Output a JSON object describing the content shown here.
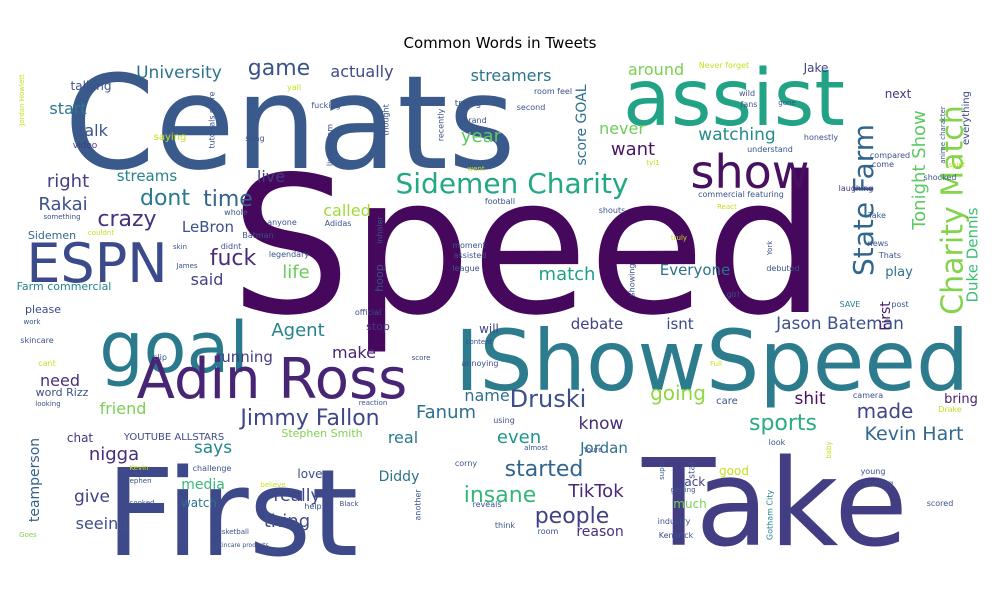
{
  "chart_data": {
    "type": "wordcloud",
    "title": "Common Words in Tweets",
    "colormap": "viridis",
    "words": [
      {
        "text": "Speed",
        "color": "#45085d",
        "weight": 100
      },
      {
        "text": "Cenats",
        "color": "#3b5a8c",
        "weight": 88
      },
      {
        "text": "First",
        "color": "#3e4989",
        "weight": 85
      },
      {
        "text": "Take",
        "color": "#433d84",
        "weight": 85
      },
      {
        "text": "IShowSpeed",
        "color": "#2c7c8e",
        "weight": 68
      },
      {
        "text": "assist",
        "color": "#22a385",
        "weight": 62
      },
      {
        "text": "goal",
        "color": "#2a7a8e",
        "weight": 55
      },
      {
        "text": "Adin Ross",
        "color": "#482475",
        "weight": 45
      },
      {
        "text": "ESPN",
        "color": "#3b4a8b",
        "weight": 42
      },
      {
        "text": "show",
        "color": "#471061",
        "weight": 38
      },
      {
        "text": "Charity Match",
        "color": "#84d44b",
        "weight": 32
      },
      {
        "text": "Sidemen Charity",
        "color": "#22a884",
        "weight": 28
      },
      {
        "text": "State Farm",
        "color": "#31668e",
        "weight": 26
      },
      {
        "text": "Jimmy Fallon",
        "color": "#3f4788",
        "weight": 22
      },
      {
        "text": "Druski",
        "color": "#3c4f8a",
        "weight": 22
      },
      {
        "text": "insane",
        "color": "#35b779",
        "weight": 20
      },
      {
        "text": "started",
        "color": "#32658e",
        "weight": 20
      },
      {
        "text": "people",
        "color": "#424086",
        "weight": 20
      },
      {
        "text": "fuck",
        "color": "#472d7b",
        "weight": 18
      },
      {
        "text": "dont",
        "color": "#2a788e",
        "weight": 18
      },
      {
        "text": "game",
        "color": "#3a538b",
        "weight": 18
      },
      {
        "text": "crazy",
        "color": "#46327e",
        "weight": 18
      },
      {
        "text": "time",
        "color": "#34618d",
        "weight": 18
      },
      {
        "text": "TikTok",
        "color": "#482878",
        "weight": 16
      },
      {
        "text": "sports",
        "color": "#26ad81",
        "weight": 18
      },
      {
        "text": "Kevin Hart",
        "color": "#31688e",
        "weight": 16
      },
      {
        "text": "Tonight Show",
        "color": "#5ec962",
        "weight": 14
      },
      {
        "text": "Duke Dennis",
        "color": "#3dbc74",
        "weight": 12
      },
      {
        "text": "going",
        "color": "#90d743",
        "weight": 17
      },
      {
        "text": "made",
        "color": "#404688",
        "weight": 16
      },
      {
        "text": "want",
        "color": "#481668",
        "weight": 15
      },
      {
        "text": "Fanum",
        "color": "#2e6f8e",
        "weight": 15
      },
      {
        "text": "nigga",
        "color": "#472c7a",
        "weight": 14
      },
      {
        "text": "Jason Bateman",
        "color": "#3b528b",
        "weight": 13
      },
      {
        "text": "Agent",
        "color": "#26828e",
        "weight": 14
      },
      {
        "text": "University",
        "color": "#2c738e",
        "weight": 14
      },
      {
        "text": "actually",
        "color": "#3e4a89",
        "weight": 13
      },
      {
        "text": "streamers",
        "color": "#2b748e",
        "weight": 13
      },
      {
        "text": "year",
        "color": "#5ec962",
        "weight": 14
      },
      {
        "text": "watching",
        "color": "#238a8d",
        "weight": 14
      },
      {
        "text": "around",
        "color": "#7ad151",
        "weight": 13
      },
      {
        "text": "never",
        "color": "#6ccd5a",
        "weight": 13
      },
      {
        "text": "score GOAL",
        "color": "#2e6e8e",
        "weight": 11
      },
      {
        "text": "right",
        "color": "#433e85",
        "weight": 14
      },
      {
        "text": "streams",
        "color": "#26828e",
        "weight": 12
      },
      {
        "text": "Rakai",
        "color": "#3c508b",
        "weight": 14
      },
      {
        "text": "LeBron",
        "color": "#3b518b",
        "weight": 12
      },
      {
        "text": "life",
        "color": "#69cd5b",
        "weight": 14
      },
      {
        "text": "live",
        "color": "#443a83",
        "weight": 13
      },
      {
        "text": "said",
        "color": "#423f85",
        "weight": 13
      },
      {
        "text": "called",
        "color": "#a0da39",
        "weight": 13
      },
      {
        "text": "match",
        "color": "#1fa088",
        "weight": 14
      },
      {
        "text": "Everyone",
        "color": "#2d708e",
        "weight": 12
      },
      {
        "text": "debate",
        "color": "#424186",
        "weight": 12
      },
      {
        "text": "isnt",
        "color": "#3e4989",
        "weight": 12
      },
      {
        "text": "start",
        "color": "#2a768e",
        "weight": 13
      },
      {
        "text": "talk",
        "color": "#3b528b",
        "weight": 13
      },
      {
        "text": "running",
        "color": "#443b84",
        "weight": 12
      },
      {
        "text": "make",
        "color": "#482475",
        "weight": 13
      },
      {
        "text": "need",
        "color": "#472f7d",
        "weight": 13
      },
      {
        "text": "friend",
        "color": "#7ad151",
        "weight": 13
      },
      {
        "text": "name",
        "color": "#2e6e8e",
        "weight": 13
      },
      {
        "text": "even",
        "color": "#1f978b",
        "weight": 14
      },
      {
        "text": "Jordan",
        "color": "#2d718e",
        "weight": 12
      },
      {
        "text": "know",
        "color": "#472b7a",
        "weight": 13
      },
      {
        "text": "shit",
        "color": "#471063",
        "weight": 13
      },
      {
        "text": "real",
        "color": "#2a778e",
        "weight": 13
      },
      {
        "text": "says",
        "color": "#25858e",
        "weight": 13
      },
      {
        "text": "give",
        "color": "#414287",
        "weight": 13
      },
      {
        "text": "really",
        "color": "#404588",
        "weight": 13
      },
      {
        "text": "thing",
        "color": "#3e4c8a",
        "weight": 14
      },
      {
        "text": "seeing",
        "color": "#3d4e8a",
        "weight": 13
      },
      {
        "text": "reason",
        "color": "#472f7d",
        "weight": 11
      },
      {
        "text": "Diddy",
        "color": "#2d718e",
        "weight": 11
      },
      {
        "text": "media",
        "color": "#37b878",
        "weight": 11
      },
      {
        "text": "teamperson",
        "color": "#33628d",
        "weight": 11
      },
      {
        "text": "play",
        "color": "#2c728e",
        "weight": 10
      },
      {
        "text": "bring",
        "color": "#481f70",
        "weight": 10
      },
      {
        "text": "First",
        "color": "#481c6e",
        "weight": 10
      },
      {
        "text": "talking",
        "color": "#3b528b",
        "weight": 10
      },
      {
        "text": "Stephen Smith",
        "color": "#7fd34e",
        "weight": 8
      },
      {
        "text": "YOUTUBE ALLSTARS",
        "color": "#3e4a89",
        "weight": 7
      },
      {
        "text": "Sidemen",
        "color": "#31678e",
        "weight": 8
      },
      {
        "text": "Farm commercial",
        "color": "#25838e",
        "weight": 8
      },
      {
        "text": "please",
        "color": "#3e4989",
        "weight": 8
      },
      {
        "text": "word Rizz",
        "color": "#3c4f8a",
        "weight": 8
      },
      {
        "text": "Jake",
        "color": "#414487",
        "weight": 8
      },
      {
        "text": "next",
        "color": "#443983",
        "weight": 8
      },
      {
        "text": "love",
        "color": "#3e4c8a",
        "weight": 8
      },
      {
        "text": "watch",
        "color": "#2d708e",
        "weight": 8
      },
      {
        "text": "chat",
        "color": "#46337f",
        "weight": 8
      },
      {
        "text": "good",
        "color": "#c5e021",
        "weight": 8
      },
      {
        "text": "back",
        "color": "#424086",
        "weight": 8
      },
      {
        "text": "much",
        "color": "#7ad151",
        "weight": 8
      },
      {
        "text": "will",
        "color": "#414487",
        "weight": 8
      },
      {
        "text": "hoop",
        "color": "#3b528b",
        "weight": 7
      },
      {
        "text": "stop",
        "color": "#463480",
        "weight": 7
      },
      {
        "text": "video",
        "color": "#443a83",
        "weight": 6
      },
      {
        "text": "everything",
        "color": "#3e4a89",
        "weight": 6
      },
      {
        "text": "wild",
        "color": "#3b528b",
        "weight": 5
      },
      {
        "text": "fans",
        "color": "#3b528b",
        "weight": 5
      },
      {
        "text": "understand",
        "color": "#3b528b",
        "weight": 5
      },
      {
        "text": "honestly",
        "color": "#3b528b",
        "weight": 5
      },
      {
        "text": "compared",
        "color": "#3b528b",
        "weight": 5
      },
      {
        "text": "come",
        "color": "#3b528b",
        "weight": 5
      },
      {
        "text": "laughing",
        "color": "#46327e",
        "weight": 5
      },
      {
        "text": "shocked",
        "color": "#3b528b",
        "weight": 5
      },
      {
        "text": "commercial featuring",
        "color": "#3b528b",
        "weight": 5
      },
      {
        "text": "Take",
        "color": "#3b528b",
        "weight": 5
      },
      {
        "text": "news",
        "color": "#3b528b",
        "weight": 5
      },
      {
        "text": "Thats",
        "color": "#3b528b",
        "weight": 5
      },
      {
        "text": "debuted",
        "color": "#3b528b",
        "weight": 5
      },
      {
        "text": "SAVE",
        "color": "#26828e",
        "weight": 5
      },
      {
        "text": "post",
        "color": "#3b528b",
        "weight": 5
      },
      {
        "text": "girl",
        "color": "#3b528b",
        "weight": 5
      },
      {
        "text": "camera",
        "color": "#3b528b",
        "weight": 5
      },
      {
        "text": "care",
        "color": "#3b528b",
        "weight": 6
      },
      {
        "text": "Drake",
        "color": "#c8e020",
        "weight": 5
      },
      {
        "text": "look",
        "color": "#3b528b",
        "weight": 5
      },
      {
        "text": "young",
        "color": "#3b528b",
        "weight": 5
      },
      {
        "text": "putting",
        "color": "#3b528b",
        "weight": 5
      },
      {
        "text": "scored",
        "color": "#3b528b",
        "weight": 5
      },
      {
        "text": "industry",
        "color": "#3b528b",
        "weight": 5
      },
      {
        "text": "Kendrick",
        "color": "#3b528b",
        "weight": 5
      },
      {
        "text": "getting",
        "color": "#3b528b",
        "weight": 5
      },
      {
        "text": "super",
        "color": "#3b528b",
        "weight": 5
      },
      {
        "text": "star",
        "color": "#3b528b",
        "weight": 6
      },
      {
        "text": "Gotham City",
        "color": "#26828e",
        "weight": 5
      },
      {
        "text": "baby",
        "color": "#c8e020",
        "weight": 5
      },
      {
        "text": "room",
        "color": "#3b528b",
        "weight": 5
      },
      {
        "text": "think",
        "color": "#3b528b",
        "weight": 5
      },
      {
        "text": "reveals",
        "color": "#3b528b",
        "weight": 5
      },
      {
        "text": "another",
        "color": "#3b528b",
        "weight": 5
      },
      {
        "text": "corny",
        "color": "#3b528b",
        "weight": 5
      },
      {
        "text": "Youre",
        "color": "#3b528b",
        "weight": 5
      },
      {
        "text": "almost",
        "color": "#3b528b",
        "weight": 5
      },
      {
        "text": "using",
        "color": "#3b528b",
        "weight": 5
      },
      {
        "text": "help",
        "color": "#3b528b",
        "weight": 5
      },
      {
        "text": "Black",
        "color": "#3b528b",
        "weight": 5
      },
      {
        "text": "believe",
        "color": "#c8e020",
        "weight": 5
      },
      {
        "text": "challenge",
        "color": "#3b528b",
        "weight": 5
      },
      {
        "text": "Stephen",
        "color": "#3b528b",
        "weight": 5
      },
      {
        "text": "Kevin",
        "color": "#c8e020",
        "weight": 5
      },
      {
        "text": "cooked",
        "color": "#3b528b",
        "weight": 5
      },
      {
        "text": "basketball",
        "color": "#3b528b",
        "weight": 5
      },
      {
        "text": "skincare products",
        "color": "#3b528b",
        "weight": 4
      },
      {
        "text": "Goes",
        "color": "#7fd34e",
        "weight": 5
      },
      {
        "text": "skincare",
        "color": "#3b528b",
        "weight": 5
      },
      {
        "text": "cant",
        "color": "#c8e020",
        "weight": 5
      },
      {
        "text": "looking",
        "color": "#3b528b",
        "weight": 5
      },
      {
        "text": "work",
        "color": "#3b528b",
        "weight": 5
      },
      {
        "text": "clip",
        "color": "#3b528b",
        "weight": 5
      },
      {
        "text": "score",
        "color": "#3b528b",
        "weight": 5
      },
      {
        "text": "annoying",
        "color": "#3b528b",
        "weight": 5
      },
      {
        "text": "reaction",
        "color": "#3b528b",
        "weight": 5
      },
      {
        "text": "content",
        "color": "#3b528b",
        "weight": 5
      },
      {
        "text": "official",
        "color": "#3b528b",
        "weight": 5
      },
      {
        "text": "league",
        "color": "#3b528b",
        "weight": 5
      },
      {
        "text": "assisted",
        "color": "#3b528b",
        "weight": 5
      },
      {
        "text": "moment",
        "color": "#3b528b",
        "weight": 5
      },
      {
        "text": "inhaler",
        "color": "#3b528b",
        "weight": 5
      },
      {
        "text": "Adidas",
        "color": "#3b528b",
        "weight": 5
      },
      {
        "text": "legendary",
        "color": "#3b528b",
        "weight": 5
      },
      {
        "text": "Batman",
        "color": "#3b528b",
        "weight": 5
      },
      {
        "text": "anyone",
        "color": "#3b528b",
        "weight": 5
      },
      {
        "text": "didnt",
        "color": "#3b528b",
        "weight": 5
      },
      {
        "text": "couldnt",
        "color": "#c8e020",
        "weight": 5
      },
      {
        "text": "skin",
        "color": "#3b528b",
        "weight": 5
      },
      {
        "text": "James",
        "color": "#3b528b",
        "weight": 5
      },
      {
        "text": "something",
        "color": "#3b528b",
        "weight": 5
      },
      {
        "text": "whole",
        "color": "#3b528b",
        "weight": 5
      },
      {
        "text": "football",
        "color": "#3b528b",
        "weight": 5
      },
      {
        "text": "shouts",
        "color": "#3b528b",
        "weight": 5
      },
      {
        "text": "React",
        "color": "#c8e020",
        "weight": 5
      },
      {
        "text": "truly",
        "color": "#c8e020",
        "weight": 5
      },
      {
        "text": "showing",
        "color": "#3b528b",
        "weight": 5
      },
      {
        "text": "York",
        "color": "#3b528b",
        "weight": 5
      },
      {
        "text": "Never forget",
        "color": "#c8e020",
        "weight": 5
      },
      {
        "text": "gone",
        "color": "#3b528b",
        "weight": 5
      },
      {
        "text": "saint",
        "color": "#c8e020",
        "weight": 5
      },
      {
        "text": "anime character",
        "color": "#3b528b",
        "weight": 5
      },
      {
        "text": "Jordan Howlett",
        "color": "#c8e020",
        "weight": 4
      },
      {
        "text": "yall",
        "color": "#c8e020",
        "weight": 5
      },
      {
        "text": "tutorials score",
        "color": "#3b528b",
        "weight": 5
      },
      {
        "text": "fucking",
        "color": "#3b528b",
        "weight": 5
      },
      {
        "text": "saying",
        "color": "#c8e020",
        "weight": 6
      },
      {
        "text": "song",
        "color": "#3b528b",
        "weight": 5
      },
      {
        "text": "livestream",
        "color": "#3b528b",
        "weight": 5
      },
      {
        "text": "thought",
        "color": "#3b528b",
        "weight": 5
      },
      {
        "text": "recently",
        "color": "#3b528b",
        "weight": 5
      },
      {
        "text": "brand",
        "color": "#3b528b",
        "weight": 5
      },
      {
        "text": "trying",
        "color": "#3b528b",
        "weight": 6
      },
      {
        "text": "room feel",
        "color": "#3b528b",
        "weight": 5
      },
      {
        "text": "second",
        "color": "#3b528b",
        "weight": 5
      },
      {
        "text": "went",
        "color": "#c8e020",
        "weight": 5
      },
      {
        "text": "tyl1",
        "color": "#c8e020",
        "weight": 5
      },
      {
        "text": "Full",
        "color": "#c8e020",
        "weight": 5
      }
    ]
  }
}
